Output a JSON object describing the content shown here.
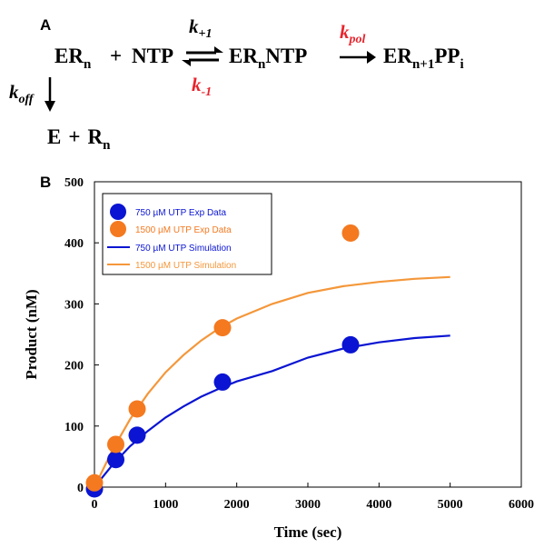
{
  "panel_a": {
    "label": "A",
    "reactant": {
      "base": "ER",
      "sub": "n"
    },
    "plus1": "+",
    "ntp": "NTP",
    "complex": {
      "base": "ER",
      "sub": "n",
      "rest": "NTP"
    },
    "product": {
      "base": "ER",
      "sub": "n+1",
      "mid": "PP",
      "sub2": "i"
    },
    "k_forward": {
      "base": "k",
      "sub": "+1",
      "color": "#000000"
    },
    "k_reverse": {
      "base": "k",
      "sub": "-1",
      "color": "#e8242c"
    },
    "k_pol": {
      "base": "k",
      "sub": "pol",
      "color": "#e8242c"
    },
    "k_off": {
      "base": "k",
      "sub": "off",
      "color": "#000000"
    },
    "dissociation": {
      "e": "E",
      "plus": "+",
      "r": "R",
      "r_sub": "n"
    }
  },
  "panel_b": {
    "label": "B"
  },
  "chart_data": {
    "type": "scatter",
    "xlabel": "Time (sec)",
    "ylabel": "Product (nM)",
    "xlim": [
      0,
      6000
    ],
    "ylim": [
      0,
      500
    ],
    "xticks": [
      0,
      1000,
      2000,
      3000,
      4000,
      5000,
      6000
    ],
    "yticks": [
      0,
      100,
      200,
      300,
      400,
      500
    ],
    "grid": false,
    "legend_position": "top-left",
    "series": [
      {
        "name": "750 µM UTP Exp Data",
        "kind": "points",
        "color": "#0a14d2",
        "x": [
          0,
          300,
          600,
          1800,
          3600
        ],
        "y": [
          -3,
          45,
          85,
          172,
          233
        ]
      },
      {
        "name": "1500 µM UTP Exp Data",
        "kind": "points",
        "color": "#f4791f",
        "x": [
          0,
          300,
          600,
          1800,
          3600
        ],
        "y": [
          7,
          70,
          128,
          261,
          416
        ]
      },
      {
        "name": "750 µM UTP Simulation",
        "kind": "line",
        "color": "#0a14d2",
        "x": [
          0,
          250,
          500,
          750,
          1000,
          1250,
          1500,
          1750,
          2000,
          2500,
          3000,
          3500,
          4000,
          4500,
          5000
        ],
        "y": [
          0,
          36,
          67,
          92,
          114,
          132,
          148,
          161,
          173,
          190,
          212,
          227,
          237,
          244,
          248
        ]
      },
      {
        "name": "1500 µM UTP Simulation",
        "kind": "line",
        "color": "#f4973a",
        "x": [
          0,
          250,
          500,
          750,
          1000,
          1250,
          1500,
          1750,
          2000,
          2500,
          3000,
          3500,
          4000,
          4500,
          5000
        ],
        "y": [
          0,
          60,
          111,
          153,
          188,
          216,
          240,
          260,
          276,
          300,
          318,
          329,
          336,
          341,
          344
        ]
      }
    ]
  }
}
